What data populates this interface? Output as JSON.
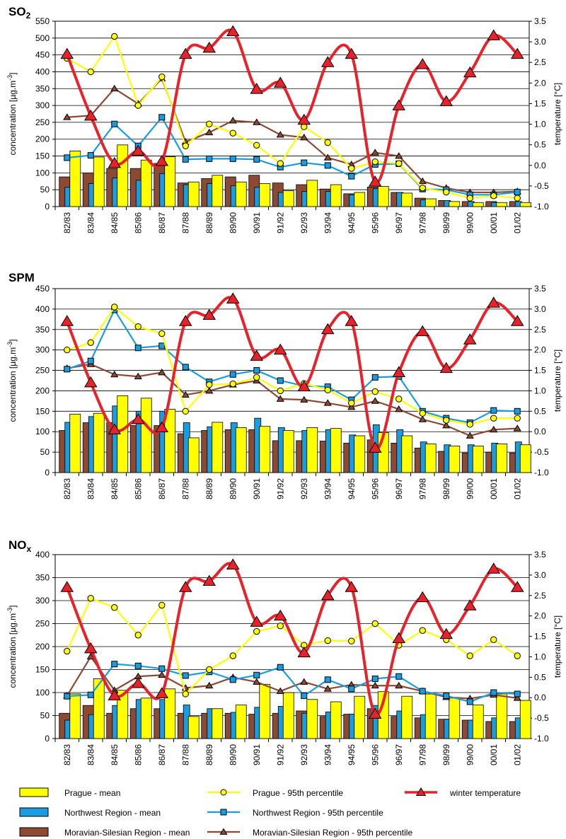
{
  "chart_data": [
    {
      "type": "bar",
      "title": "SO",
      "title_sub": "2",
      "ylabel": "concentration  [µg.m",
      "ylabel_sup": "-3",
      "y2label": "temperature [°C]",
      "ylim": [
        0,
        550
      ],
      "yticks": [
        "0",
        "50",
        "100",
        "150",
        "200",
        "250",
        "300",
        "350",
        "400",
        "450",
        "500",
        "550"
      ],
      "y2lim": [
        -1.0,
        3.5
      ],
      "y2ticks": [
        "-1.0",
        "-0.5",
        "0.0",
        "0.5",
        "1.0",
        "1.5",
        "2.0",
        "2.5",
        "3.0",
        "3.5"
      ],
      "categories": [
        "82/83",
        "83/84",
        "84/85",
        "85/86",
        "86/87",
        "87/88",
        "88/89",
        "89/90",
        "90/91",
        "91/92",
        "92/93",
        "93/94",
        "94/95",
        "95/96",
        "96/97",
        "97/98",
        "98/99",
        "99/00",
        "00/01",
        "01/02"
      ],
      "series": [
        {
          "name": "Moravian-Silesian Region - mean",
          "kind": "bar",
          "values": [
            88,
            100,
            113,
            113,
            128,
            70,
            83,
            88,
            93,
            70,
            65,
            52,
            38,
            58,
            42,
            25,
            18,
            15,
            15,
            15
          ]
        },
        {
          "name": "Northwest Region - mean",
          "kind": "bar",
          "values": [
            57,
            68,
            85,
            78,
            98,
            65,
            68,
            62,
            57,
            42,
            45,
            45,
            35,
            53,
            42,
            20,
            18,
            15,
            12,
            15
          ]
        },
        {
          "name": "Prague - mean",
          "kind": "bar",
          "values": [
            165,
            147,
            183,
            138,
            148,
            73,
            93,
            73,
            68,
            47,
            78,
            65,
            42,
            60,
            40,
            23,
            15,
            12,
            12,
            12
          ]
        },
        {
          "name": "Moravian-Silesian Region - 95th percentile",
          "kind": "line",
          "values": [
            265,
            270,
            350,
            305,
            380,
            192,
            220,
            255,
            250,
            213,
            205,
            145,
            125,
            160,
            150,
            75,
            55,
            42,
            42,
            45
          ]
        },
        {
          "name": "Northwest Region - 95th percentile",
          "kind": "line",
          "values": [
            145,
            152,
            245,
            180,
            265,
            140,
            142,
            142,
            140,
            117,
            130,
            122,
            90,
            125,
            127,
            52,
            50,
            35,
            35,
            43
          ]
        },
        {
          "name": "Prague - 95th percentile",
          "kind": "line",
          "values": [
            440,
            400,
            505,
            300,
            385,
            180,
            245,
            218,
            182,
            128,
            237,
            190,
            113,
            133,
            128,
            55,
            43,
            25,
            32,
            25
          ]
        },
        {
          "name": "winter temperature",
          "kind": "temp",
          "values": [
            2.7,
            1.2,
            0.05,
            0.35,
            0.1,
            2.7,
            2.85,
            3.25,
            1.85,
            2.0,
            1.1,
            2.5,
            2.7,
            -0.4,
            1.45,
            2.45,
            1.55,
            2.25,
            3.15,
            2.7
          ]
        }
      ]
    },
    {
      "type": "bar",
      "title": "SPM",
      "ylabel": "concentration  [µg.m",
      "ylabel_sup": "-3",
      "y2label": "temperature [°C]",
      "ylim": [
        0,
        450
      ],
      "yticks": [
        "0",
        "50",
        "100",
        "150",
        "200",
        "250",
        "300",
        "350",
        "400",
        "450"
      ],
      "y2lim": [
        -1.0,
        3.5
      ],
      "y2ticks": [
        "-1.0",
        "-0.5",
        "0.0",
        "0.5",
        "1.0",
        "1.5",
        "2.0",
        "2.5",
        "3.0",
        "3.5"
      ],
      "categories": [
        "82/83",
        "83/84",
        "84/85",
        "85/86",
        "86/87",
        "87/88",
        "88/89",
        "89/90",
        "90/91",
        "91/92",
        "92/93",
        "93/94",
        "94/95",
        "95/96",
        "96/97",
        "97/98",
        "98/99",
        "99/00",
        "00/01",
        "01/02"
      ],
      "series": [
        {
          "name": "Moravian-Silesian Region - mean",
          "kind": "bar",
          "values": [
            103,
            122,
            122,
            115,
            115,
            95,
            103,
            105,
            105,
            78,
            78,
            77,
            72,
            80,
            72,
            60,
            52,
            48,
            50,
            48
          ]
        },
        {
          "name": "Northwest Region - mean",
          "kind": "bar",
          "values": [
            123,
            137,
            163,
            150,
            150,
            122,
            112,
            122,
            133,
            110,
            103,
            105,
            92,
            117,
            105,
            75,
            68,
            68,
            72,
            75
          ]
        },
        {
          "name": "Prague - mean",
          "kind": "bar",
          "values": [
            143,
            145,
            188,
            182,
            155,
            85,
            123,
            110,
            113,
            103,
            110,
            108,
            90,
            98,
            90,
            70,
            65,
            65,
            70,
            68
          ]
        },
        {
          "name": "Moravian-Silesian Region - 95th percentile",
          "kind": "line",
          "values": [
            255,
            265,
            240,
            235,
            245,
            190,
            200,
            215,
            225,
            180,
            178,
            170,
            160,
            175,
            155,
            130,
            115,
            90,
            105,
            108
          ]
        },
        {
          "name": "Northwest Region - 95th percentile",
          "kind": "line",
          "values": [
            253,
            273,
            398,
            305,
            310,
            258,
            222,
            240,
            250,
            225,
            212,
            210,
            178,
            233,
            235,
            150,
            133,
            122,
            152,
            150
          ]
        },
        {
          "name": "Prague - 95th percentile",
          "kind": "line",
          "values": [
            300,
            318,
            405,
            357,
            340,
            150,
            215,
            217,
            233,
            200,
            218,
            202,
            170,
            198,
            180,
            145,
            128,
            118,
            133,
            133
          ]
        },
        {
          "name": "winter temperature",
          "kind": "temp",
          "values": [
            2.7,
            1.2,
            0.05,
            0.3,
            0.1,
            2.7,
            2.85,
            3.25,
            1.85,
            2.0,
            1.1,
            2.5,
            2.7,
            -0.4,
            1.45,
            2.45,
            1.55,
            2.25,
            3.15,
            2.7
          ]
        }
      ]
    },
    {
      "type": "bar",
      "title": "NO",
      "title_sub": "x",
      "ylabel": "concentration  [µg.m",
      "ylabel_sup": "-3",
      "y2label": "temperature [°C]",
      "ylim": [
        0,
        400
      ],
      "yticks": [
        "0",
        "50",
        "100",
        "150",
        "200",
        "250",
        "300",
        "350",
        "400"
      ],
      "y2lim": [
        -1.0,
        3.5
      ],
      "y2ticks": [
        "-1.0",
        "-0.5",
        "0.0",
        "0.5",
        "1.0",
        "1.5",
        "2.0",
        "2.5",
        "3.0",
        "3.5"
      ],
      "categories": [
        "82/83",
        "83/84",
        "84/85",
        "85/86",
        "86/87",
        "87/88",
        "88/89",
        "89/90",
        "90/91",
        "91/92",
        "92/93",
        "93/94",
        "94/95",
        "95/96",
        "96/97",
        "97/98",
        "98/99",
        "99/00",
        "00/01",
        "01/02"
      ],
      "series": [
        {
          "name": "Moravian-Silesian Region - mean",
          "kind": "bar",
          "values": [
            55,
            72,
            55,
            65,
            65,
            55,
            55,
            55,
            53,
            55,
            60,
            48,
            53,
            65,
            48,
            45,
            42,
            40,
            37,
            37
          ]
        },
        {
          "name": "Northwest Region - mean",
          "kind": "bar",
          "values": [
            40,
            52,
            72,
            85,
            85,
            73,
            65,
            57,
            68,
            70,
            55,
            58,
            53,
            72,
            60,
            52,
            42,
            40,
            45,
            45
          ]
        },
        {
          "name": "Prague - mean",
          "kind": "bar",
          "values": [
            97,
            130,
            105,
            88,
            108,
            48,
            65,
            73,
            118,
            100,
            85,
            80,
            92,
            102,
            92,
            97,
            88,
            73,
            97,
            83
          ]
        },
        {
          "name": "Moravian-Silesian Region - 95th percentile",
          "kind": "line",
          "values": [
            93,
            178,
            105,
            135,
            138,
            110,
            115,
            133,
            123,
            103,
            123,
            108,
            117,
            115,
            115,
            103,
            90,
            87,
            95,
            88
          ]
        },
        {
          "name": "Northwest Region - 95th percentile",
          "kind": "line",
          "values": [
            92,
            95,
            162,
            158,
            152,
            137,
            145,
            128,
            138,
            155,
            93,
            128,
            108,
            130,
            135,
            103,
            93,
            80,
            100,
            97
          ]
        },
        {
          "name": "Prague - 95th percentile",
          "kind": "line",
          "values": [
            190,
            305,
            285,
            225,
            290,
            97,
            150,
            180,
            233,
            245,
            203,
            213,
            212,
            250,
            203,
            235,
            215,
            180,
            215,
            180
          ]
        },
        {
          "name": "winter temperature",
          "kind": "temp",
          "values": [
            2.7,
            1.2,
            0.05,
            0.35,
            0.1,
            2.7,
            2.85,
            3.25,
            1.85,
            2.0,
            1.1,
            2.5,
            2.7,
            -0.4,
            1.45,
            2.45,
            1.55,
            2.25,
            3.15,
            2.7
          ]
        }
      ]
    }
  ],
  "colors": {
    "prague": "#ffff00",
    "northwest": "#1a9de0",
    "moravian": "#8c4a34",
    "temperature": "#e8222a",
    "grid": "#000000",
    "panel_bg": "#ffffff"
  },
  "legend": [
    {
      "label": "Prague - mean",
      "kind": "bar",
      "series": "prague"
    },
    {
      "label": "Prague - 95th percentile",
      "kind": "line",
      "series": "prague",
      "marker": "circle"
    },
    {
      "label": "winter temperature",
      "kind": "temp",
      "series": "temperature",
      "marker": "triangle"
    },
    {
      "label": "Northwest Region - mean",
      "kind": "bar",
      "series": "northwest"
    },
    {
      "label": "Northwest Region - 95th percentile",
      "kind": "line",
      "series": "northwest",
      "marker": "square"
    },
    {
      "label": "Moravian-Silesian Region - mean",
      "kind": "bar",
      "series": "moravian"
    },
    {
      "label": "Moravian-Silesian Region - 95th percentile",
      "kind": "line",
      "series": "moravian",
      "marker": "triangle"
    }
  ]
}
